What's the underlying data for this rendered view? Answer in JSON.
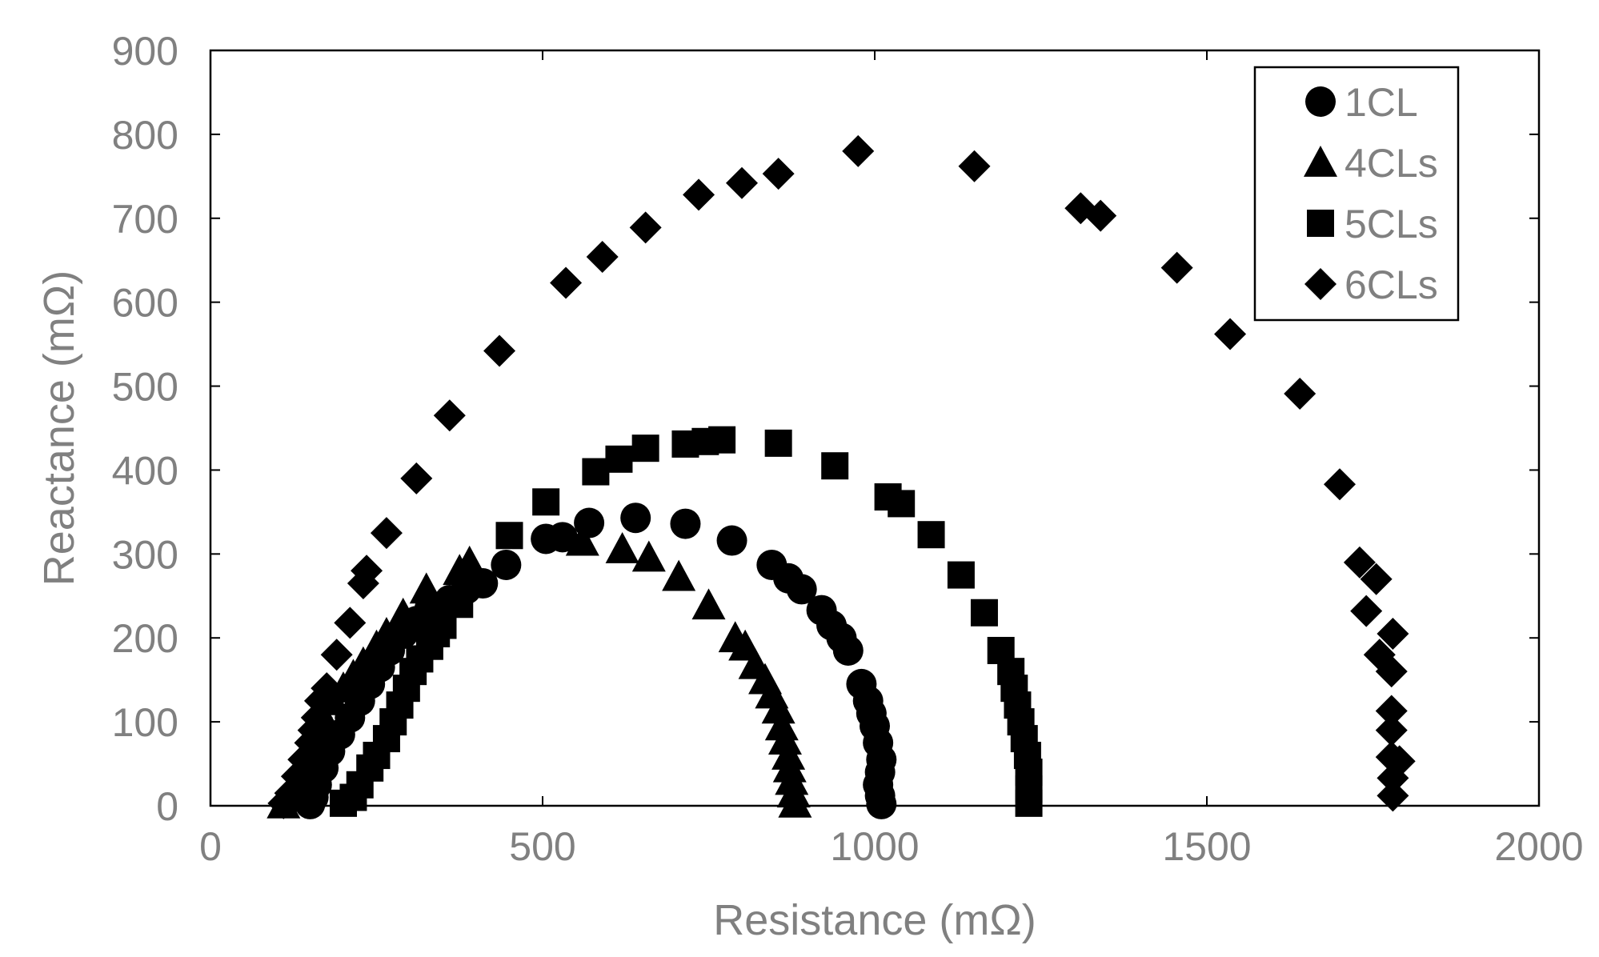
{
  "chart_data": {
    "type": "scatter",
    "title": "",
    "xlabel": "Resistance (mΩ)",
    "ylabel": "Reactance (mΩ)",
    "xlim": [
      0,
      2000
    ],
    "ylim": [
      0,
      900
    ],
    "xticks": [
      0,
      500,
      1000,
      1500,
      2000
    ],
    "yticks": [
      0,
      100,
      200,
      300,
      400,
      500,
      600,
      700,
      800,
      900
    ],
    "grid": false,
    "legend_position": "top-right",
    "series": [
      {
        "name": "1CL",
        "marker": "circle",
        "color": "#000000",
        "points": [
          [
            150,
            2
          ],
          [
            155,
            10
          ],
          [
            160,
            25
          ],
          [
            170,
            45
          ],
          [
            180,
            65
          ],
          [
            195,
            85
          ],
          [
            210,
            105
          ],
          [
            225,
            125
          ],
          [
            240,
            145
          ],
          [
            255,
            165
          ],
          [
            270,
            185
          ],
          [
            290,
            205
          ],
          [
            310,
            220
          ],
          [
            330,
            235
          ],
          [
            360,
            245
          ],
          [
            385,
            258
          ],
          [
            410,
            265
          ],
          [
            445,
            287
          ],
          [
            505,
            318
          ],
          [
            530,
            320
          ],
          [
            570,
            337
          ],
          [
            640,
            343
          ],
          [
            715,
            336
          ],
          [
            785,
            316
          ],
          [
            845,
            287
          ],
          [
            870,
            271
          ],
          [
            890,
            258
          ],
          [
            920,
            233
          ],
          [
            935,
            215
          ],
          [
            950,
            200
          ],
          [
            960,
            185
          ],
          [
            980,
            145
          ],
          [
            990,
            125
          ],
          [
            995,
            110
          ],
          [
            1000,
            95
          ],
          [
            1005,
            75
          ],
          [
            1010,
            55
          ],
          [
            1008,
            40
          ],
          [
            1005,
            25
          ],
          [
            1008,
            12
          ],
          [
            1010,
            2
          ]
        ]
      },
      {
        "name": "4CLs",
        "marker": "triangle",
        "color": "#000000",
        "points": [
          [
            110,
            2
          ],
          [
            120,
            10
          ],
          [
            130,
            25
          ],
          [
            140,
            45
          ],
          [
            150,
            65
          ],
          [
            160,
            85
          ],
          [
            170,
            105
          ],
          [
            185,
            125
          ],
          [
            200,
            140
          ],
          [
            215,
            155
          ],
          [
            230,
            170
          ],
          [
            250,
            190
          ],
          [
            265,
            205
          ],
          [
            290,
            228
          ],
          [
            325,
            258
          ],
          [
            375,
            280
          ],
          [
            390,
            290
          ],
          [
            560,
            315
          ],
          [
            620,
            306
          ],
          [
            660,
            296
          ],
          [
            705,
            273
          ],
          [
            750,
            239
          ],
          [
            790,
            200
          ],
          [
            805,
            190
          ],
          [
            820,
            168
          ],
          [
            835,
            150
          ],
          [
            845,
            133
          ],
          [
            855,
            115
          ],
          [
            860,
            95
          ],
          [
            865,
            78
          ],
          [
            870,
            60
          ],
          [
            872,
            45
          ],
          [
            875,
            30
          ],
          [
            878,
            15
          ],
          [
            880,
            3
          ]
        ]
      },
      {
        "name": "5CLs",
        "marker": "square",
        "color": "#000000",
        "points": [
          [
            200,
            3
          ],
          [
            215,
            10
          ],
          [
            225,
            25
          ],
          [
            240,
            45
          ],
          [
            250,
            60
          ],
          [
            265,
            80
          ],
          [
            275,
            100
          ],
          [
            285,
            120
          ],
          [
            295,
            140
          ],
          [
            305,
            160
          ],
          [
            315,
            175
          ],
          [
            330,
            190
          ],
          [
            340,
            205
          ],
          [
            350,
            215
          ],
          [
            375,
            240
          ],
          [
            450,
            322
          ],
          [
            505,
            362
          ],
          [
            580,
            398
          ],
          [
            615,
            413
          ],
          [
            655,
            426
          ],
          [
            715,
            431
          ],
          [
            745,
            434
          ],
          [
            770,
            436
          ],
          [
            855,
            432
          ],
          [
            940,
            405
          ],
          [
            1020,
            368
          ],
          [
            1040,
            360
          ],
          [
            1085,
            323
          ],
          [
            1130,
            275
          ],
          [
            1165,
            230
          ],
          [
            1190,
            185
          ],
          [
            1205,
            160
          ],
          [
            1210,
            140
          ],
          [
            1215,
            120
          ],
          [
            1220,
            100
          ],
          [
            1225,
            80
          ],
          [
            1230,
            60
          ],
          [
            1232,
            40
          ],
          [
            1232,
            20
          ],
          [
            1232,
            3
          ]
        ]
      },
      {
        "name": "6CLs",
        "marker": "diamond",
        "color": "#000000",
        "points": [
          [
            110,
            3
          ],
          [
            120,
            15
          ],
          [
            130,
            35
          ],
          [
            140,
            55
          ],
          [
            150,
            75
          ],
          [
            155,
            90
          ],
          [
            160,
            105
          ],
          [
            165,
            125
          ],
          [
            175,
            140
          ],
          [
            190,
            180
          ],
          [
            210,
            218
          ],
          [
            230,
            265
          ],
          [
            235,
            280
          ],
          [
            265,
            325
          ],
          [
            310,
            390
          ],
          [
            360,
            465
          ],
          [
            435,
            542
          ],
          [
            535,
            623
          ],
          [
            590,
            654
          ],
          [
            655,
            689
          ],
          [
            735,
            728
          ],
          [
            800,
            742
          ],
          [
            855,
            753
          ],
          [
            975,
            780
          ],
          [
            1150,
            762
          ],
          [
            1310,
            712
          ],
          [
            1340,
            703
          ],
          [
            1455,
            641
          ],
          [
            1535,
            562
          ],
          [
            1640,
            491
          ],
          [
            1700,
            383
          ],
          [
            1730,
            290
          ],
          [
            1740,
            232
          ],
          [
            1755,
            270
          ],
          [
            1760,
            180
          ],
          [
            1780,
            205
          ],
          [
            1778,
            160
          ],
          [
            1778,
            113
          ],
          [
            1778,
            90
          ],
          [
            1778,
            58
          ],
          [
            1790,
            53
          ],
          [
            1780,
            33
          ],
          [
            1780,
            12
          ]
        ]
      }
    ]
  }
}
